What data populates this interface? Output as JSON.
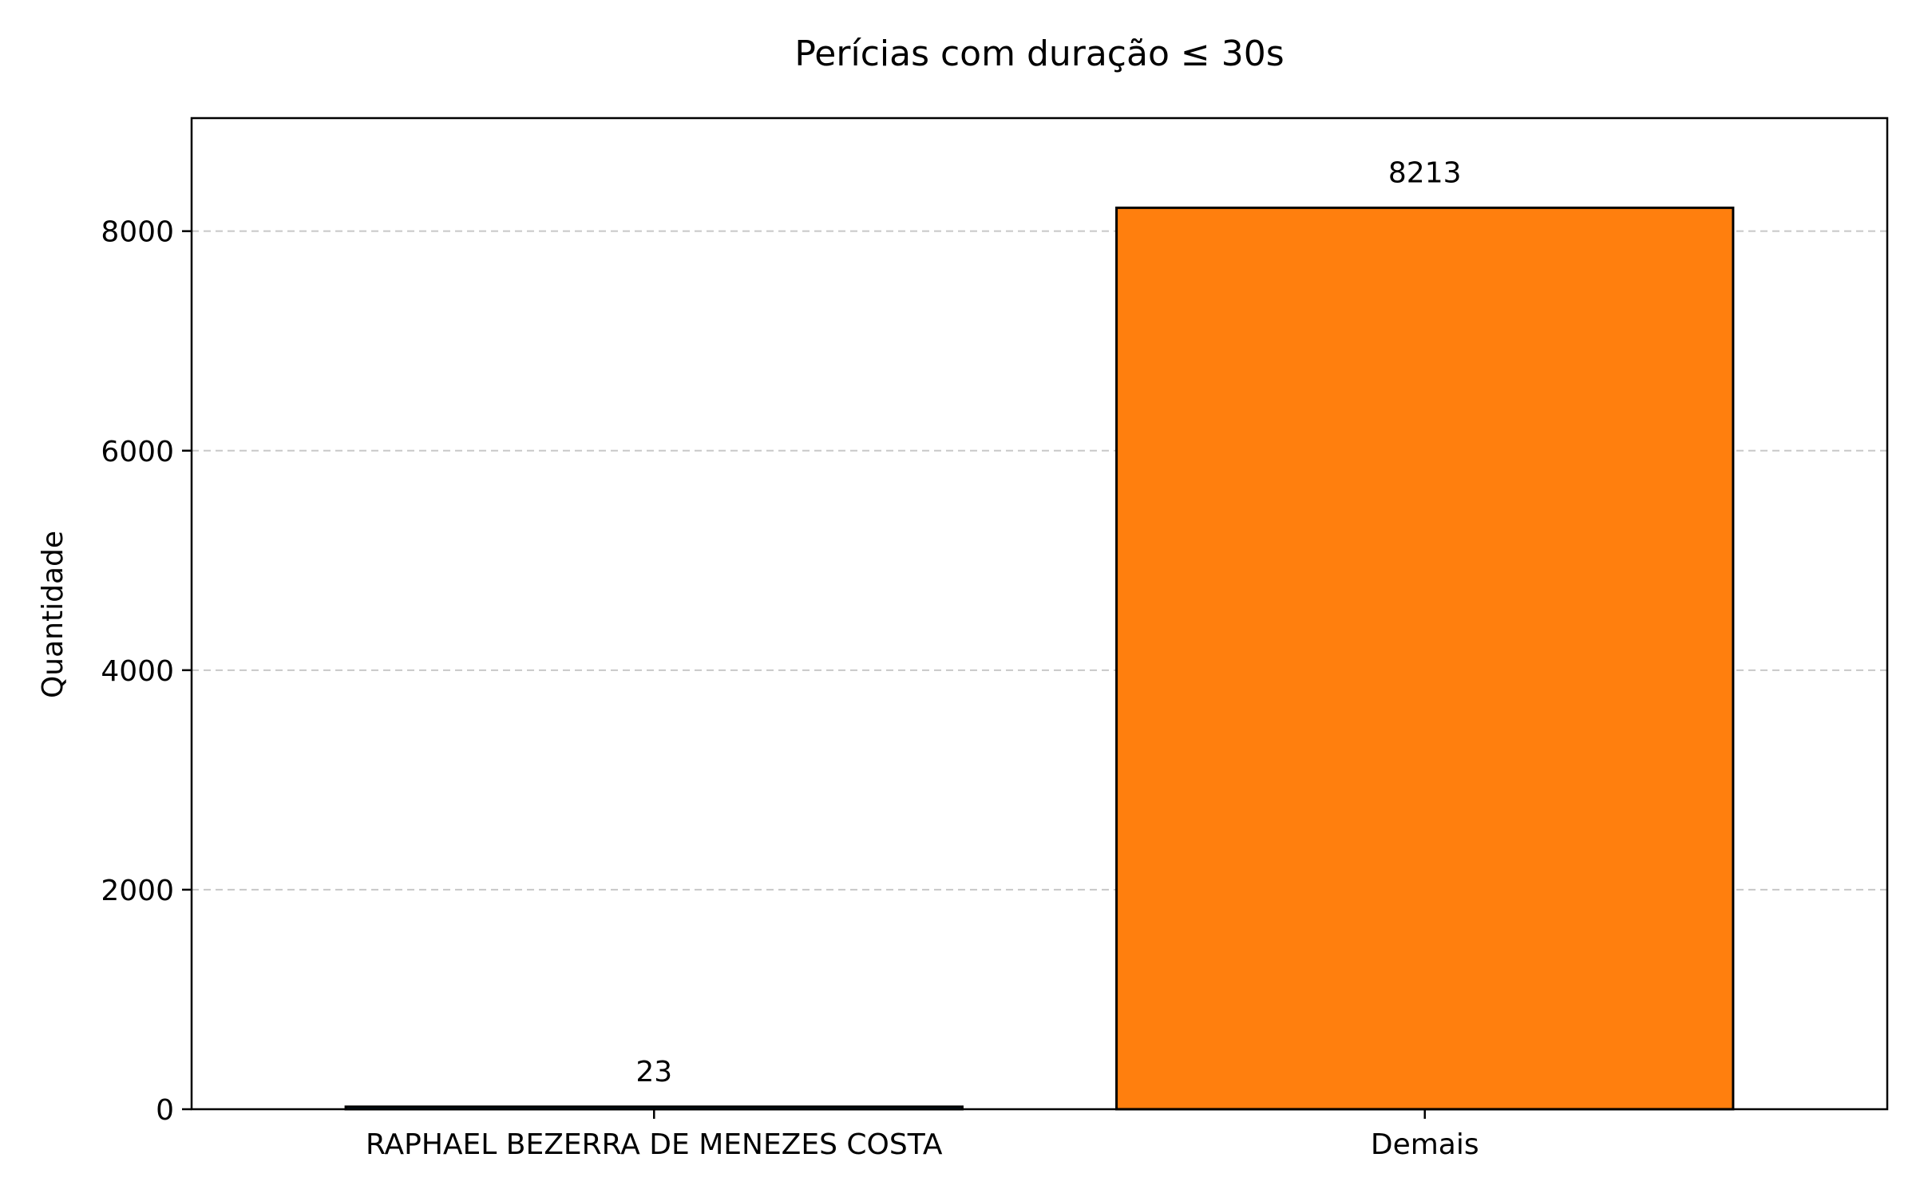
{
  "chart_data": {
    "type": "bar",
    "title": "Perícias com duração ≤ 30s",
    "xlabel": "",
    "ylabel": "Quantidade",
    "categories": [
      "RAPHAEL BEZERRA DE MENEZES COSTA",
      "Demais"
    ],
    "values": [
      23,
      8213
    ],
    "data_labels": [
      "23",
      "8213"
    ],
    "bar_colors": [
      "#1f77b4",
      "#ff7f0e"
    ],
    "edge_color": "#000000",
    "ylim": [
      0,
      9030
    ],
    "yticks": [
      0,
      2000,
      4000,
      6000,
      8000
    ],
    "ytick_labels": [
      "0",
      "2000",
      "4000",
      "6000",
      "8000"
    ],
    "grid": "horizontal-dashed",
    "legend": "none"
  }
}
